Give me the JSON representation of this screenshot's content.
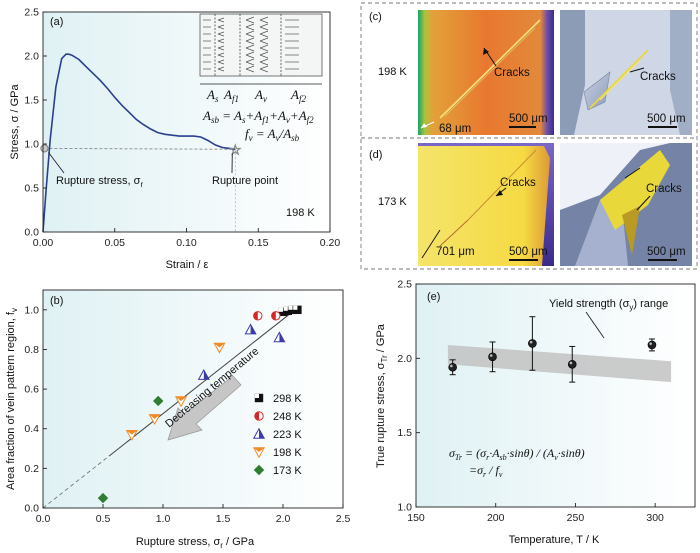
{
  "chart_data": [
    {
      "panel": "(a)",
      "type": "line",
      "xlabel": "Strain / ε",
      "ylabel": "Stress, σ / GPa",
      "xlim": [
        0,
        0.2
      ],
      "ylim": [
        0,
        2.5
      ],
      "xticks": [
        "0.00",
        "0.05",
        "0.10",
        "0.15",
        "0.20"
      ],
      "yticks": [
        "0.0",
        "0.5",
        "1.0",
        "1.5",
        "2.0",
        "2.5"
      ],
      "x": [
        0,
        0.002,
        0.005,
        0.009,
        0.013,
        0.016,
        0.018,
        0.02,
        0.025,
        0.03,
        0.035,
        0.04,
        0.045,
        0.05,
        0.055,
        0.06,
        0.065,
        0.07,
        0.075,
        0.08,
        0.085,
        0.09,
        0.095,
        0.1,
        0.105,
        0.11,
        0.115,
        0.12,
        0.125,
        0.13,
        0.134
      ],
      "y": [
        0,
        0.45,
        1.05,
        1.65,
        1.97,
        2.02,
        2.02,
        2.01,
        1.96,
        1.88,
        1.8,
        1.72,
        1.63,
        1.53,
        1.44,
        1.36,
        1.28,
        1.22,
        1.17,
        1.13,
        1.11,
        1.1,
        1.09,
        1.09,
        1.09,
        1.08,
        1.04,
        0.99,
        0.96,
        0.95,
        0.94
      ],
      "rupture_stress": {
        "x": 0.001,
        "y": 0.95
      },
      "rupture_point": {
        "x": 0.134,
        "y": 0.94
      },
      "annotations": [
        "Rupture stress, σ",
        "r",
        "Rupture point",
        "198 K"
      ],
      "inset_labels": [
        "A",
        "s",
        "A",
        "f1",
        "A",
        "v",
        "A",
        "f2"
      ],
      "eq1": [
        "A",
        "sb",
        " = A",
        "s",
        "+A",
        "f1",
        "+A",
        "v",
        "+A",
        "f2"
      ],
      "eq2": [
        "f",
        "v",
        " = A",
        "v",
        "/A",
        "sb"
      ],
      "grid": false
    },
    {
      "panel": "(b)",
      "type": "scatter",
      "xlabel": "Rupture stress, σ",
      "xlabel_sub": "r",
      "xlabel_unit": " / GPa",
      "ylabel": "Area fraction of vein pattern region, f",
      "ylabel_sub": "v",
      "xlim": [
        0,
        2.5
      ],
      "ylim": [
        0,
        1.1
      ],
      "xticks": [
        "0.0",
        "0.5",
        "1.0",
        "1.5",
        "2.0",
        "2.5"
      ],
      "yticks": [
        "0.0",
        "0.2",
        "0.4",
        "0.6",
        "0.8",
        "1.0"
      ],
      "legend_position": "bottom-right",
      "arrow_label": "Decreasing temperature",
      "fit_line": {
        "x": [
          0,
          2.1
        ],
        "y": [
          0,
          1.0
        ]
      },
      "series": [
        {
          "name": "298 K",
          "color": "#111111",
          "marker": "square",
          "x": [
            2.0,
            2.04,
            2.08,
            2.12
          ],
          "y": [
            0.99,
            0.995,
            1.0,
            1.0
          ]
        },
        {
          "name": "248 K",
          "color": "#d62728",
          "marker": "circle",
          "x": [
            1.79,
            1.94
          ],
          "y": [
            0.97,
            0.97
          ]
        },
        {
          "name": "223 K",
          "color": "#3a3ca8",
          "marker": "triangle-up",
          "x": [
            1.34,
            1.73,
            1.97
          ],
          "y": [
            0.67,
            0.9,
            0.86
          ]
        },
        {
          "name": "198 K",
          "color": "#f08a24",
          "marker": "triangle-down",
          "x": [
            0.74,
            0.93,
            1.15,
            1.47
          ],
          "y": [
            0.37,
            0.45,
            0.54,
            0.81
          ]
        },
        {
          "name": "173 K",
          "color": "#2e7d32",
          "marker": "diamond",
          "x": [
            0.5,
            0.96
          ],
          "y": [
            0.05,
            0.54
          ]
        }
      ]
    },
    {
      "panel": "(e)",
      "type": "scatter",
      "xlabel": "Temperature, T / K",
      "ylabel": "True rupture stress, σ",
      "ylabel_sub": "Tr",
      "ylabel_unit": " / GPa",
      "xlim": [
        150,
        325
      ],
      "ylim": [
        1.0,
        2.5
      ],
      "xticks": [
        "150",
        "200",
        "250",
        "300"
      ],
      "yticks": [
        "1.0",
        "1.5",
        "2.0",
        "2.5"
      ],
      "x": [
        173,
        198,
        223,
        248,
        298
      ],
      "y": [
        1.94,
        2.01,
        2.1,
        1.96,
        2.09
      ],
      "err": [
        0.05,
        0.1,
        0.18,
        0.12,
        0.04
      ],
      "band": {
        "x": [
          170,
          310
        ],
        "lower_start": 1.96,
        "upper_start": 2.09,
        "lower_end": 1.84,
        "upper_end": 1.98
      },
      "band_label": "Yield strength (σ",
      "band_label_sub": "y",
      "band_label_end": ") range",
      "formula_line1": "σ",
      "formula_line1_sub": "Tr",
      "formula_line1_rest": " = (σ",
      "formula_r": "r",
      "formula_mid": "·A",
      "formula_sb": "sb",
      "formula_mid2": "·sinθ) / (A",
      "formula_v": "v",
      "formula_end": "·sinθ)",
      "formula_line2": "=σ",
      "formula_line2_sub": "r",
      "formula_line2_mid": " / f",
      "formula_line2_end": "v"
    }
  ],
  "micrographs": {
    "panel_c": "(c)",
    "panel_d": "(d)",
    "temp_c": "198 K",
    "temp_d": "173 K",
    "cracks": "Cracks",
    "scale": "500 μm",
    "dim_c": "68 μm",
    "dim_d": "701 μm"
  }
}
